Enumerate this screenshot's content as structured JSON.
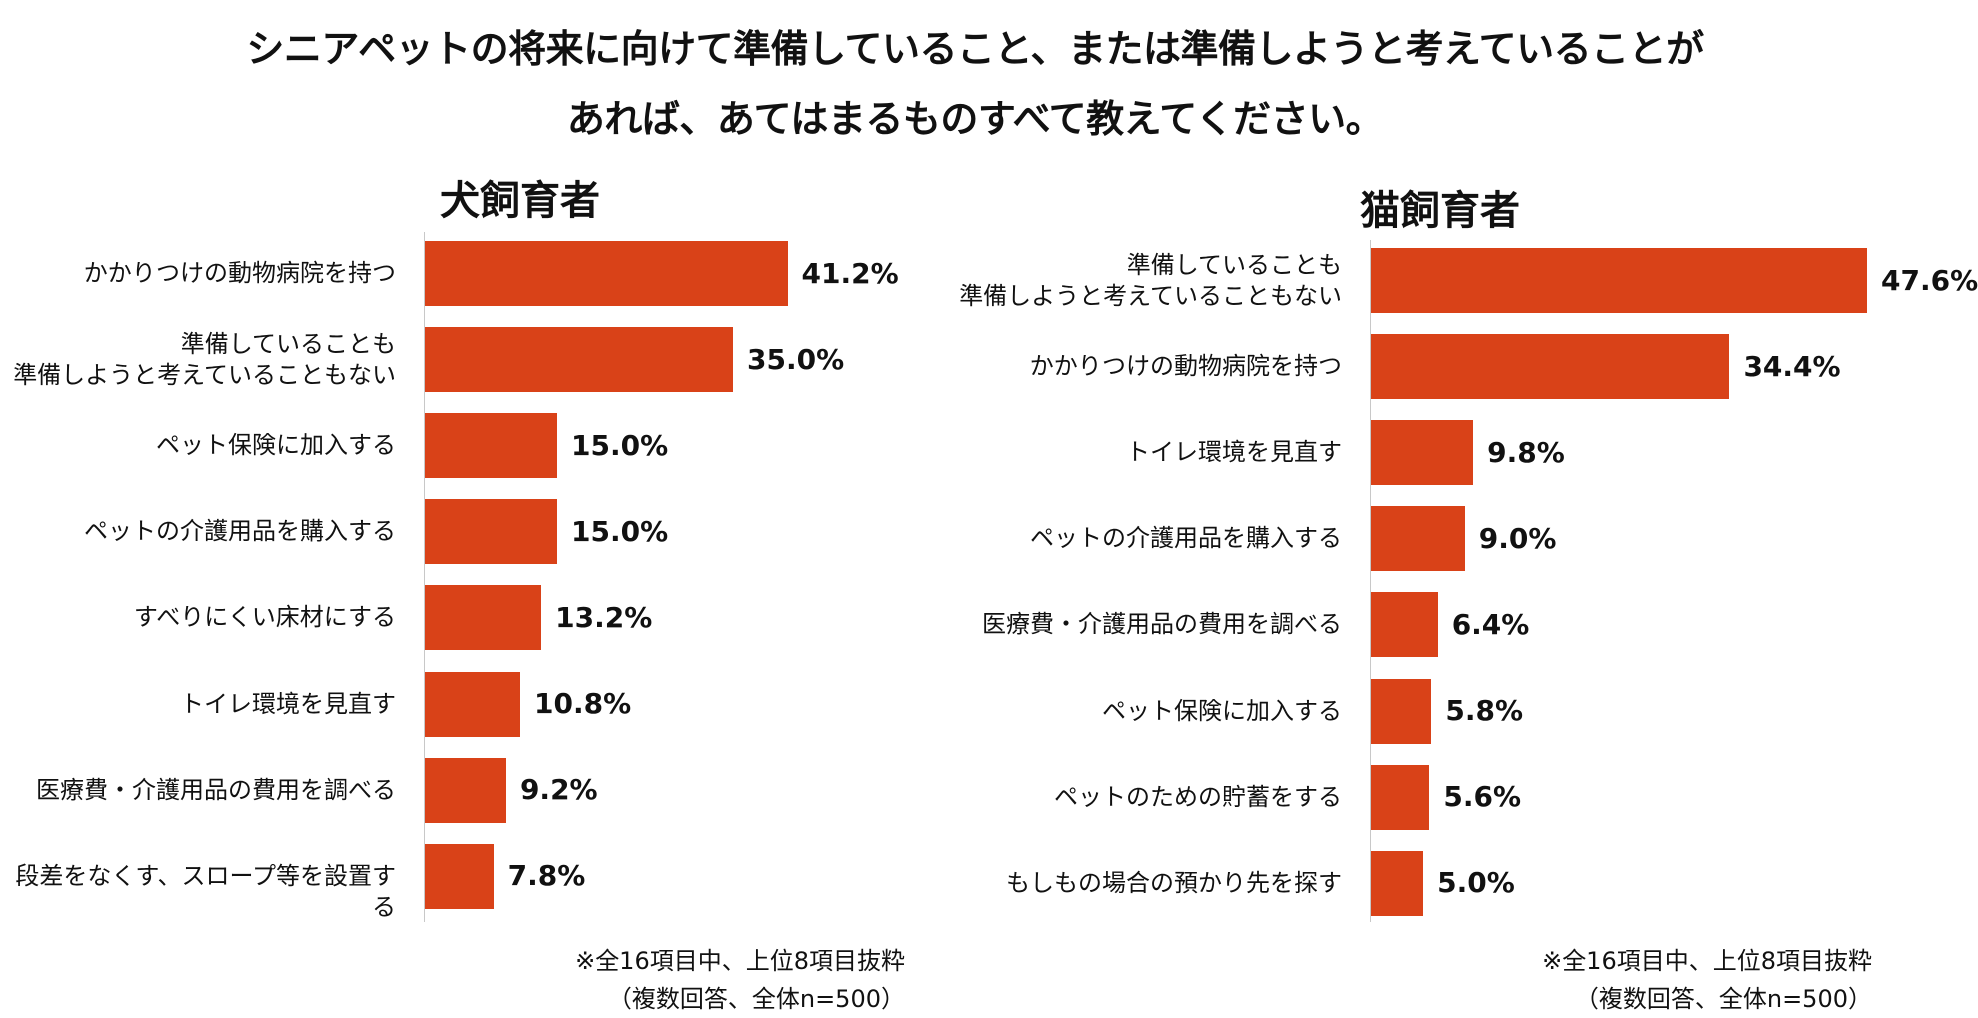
{
  "title": {
    "line1": "シニアペットの将来に向けて準備していること、または準備しようと考えていることが",
    "line2": "あれば、あてはまるものすべて教えてください。"
  },
  "colors": {
    "bar": "#D94218",
    "axis": "#c8c8c8",
    "text": "#111111"
  },
  "chart_data": [
    {
      "type": "bar",
      "orientation": "horizontal",
      "title": "犬飼育者",
      "categories": [
        "かかりつけの動物病院を持つ",
        "準備していることも\n準備しようと考えていることもない",
        "ペット保険に加入する",
        "ペットの介護用品を購入する",
        "すべりにくい床材にする",
        "トイレ環境を見直す",
        "医療費・介護用品の費用を調べる",
        "段差をなくす、スロープ等を設置する"
      ],
      "values": [
        41.2,
        35.0,
        15.0,
        15.0,
        13.2,
        10.8,
        9.2,
        7.8
      ],
      "value_labels": [
        "41.2%",
        "35.0%",
        "15.0%",
        "15.0%",
        "13.2%",
        "10.8%",
        "9.2%",
        "7.8%"
      ],
      "unit": "%",
      "note_line1": "※全16項目中、上位8項目抜粋",
      "note_line2": "（複数回答、全体n=500）"
    },
    {
      "type": "bar",
      "orientation": "horizontal",
      "title": "猫飼育者",
      "categories": [
        "準備していることも\n準備しようと考えていることもない",
        "かかりつけの動物病院を持つ",
        "トイレ環境を見直す",
        "ペットの介護用品を購入する",
        "医療費・介護用品の費用を調べる",
        "ペット保険に加入する",
        "ペットのための貯蓄をする",
        "もしもの場合の預かり先を探す"
      ],
      "values": [
        47.6,
        34.4,
        9.8,
        9.0,
        6.4,
        5.8,
        5.6,
        5.0
      ],
      "value_labels": [
        "47.6%",
        "34.4%",
        "9.8%",
        "9.0%",
        "6.4%",
        "5.8%",
        "5.6%",
        "5.0%"
      ],
      "unit": "%",
      "note_line1": "※全16項目中、上位8項目抜粋",
      "note_line2": "（複数回答、全体n=500）"
    }
  ]
}
